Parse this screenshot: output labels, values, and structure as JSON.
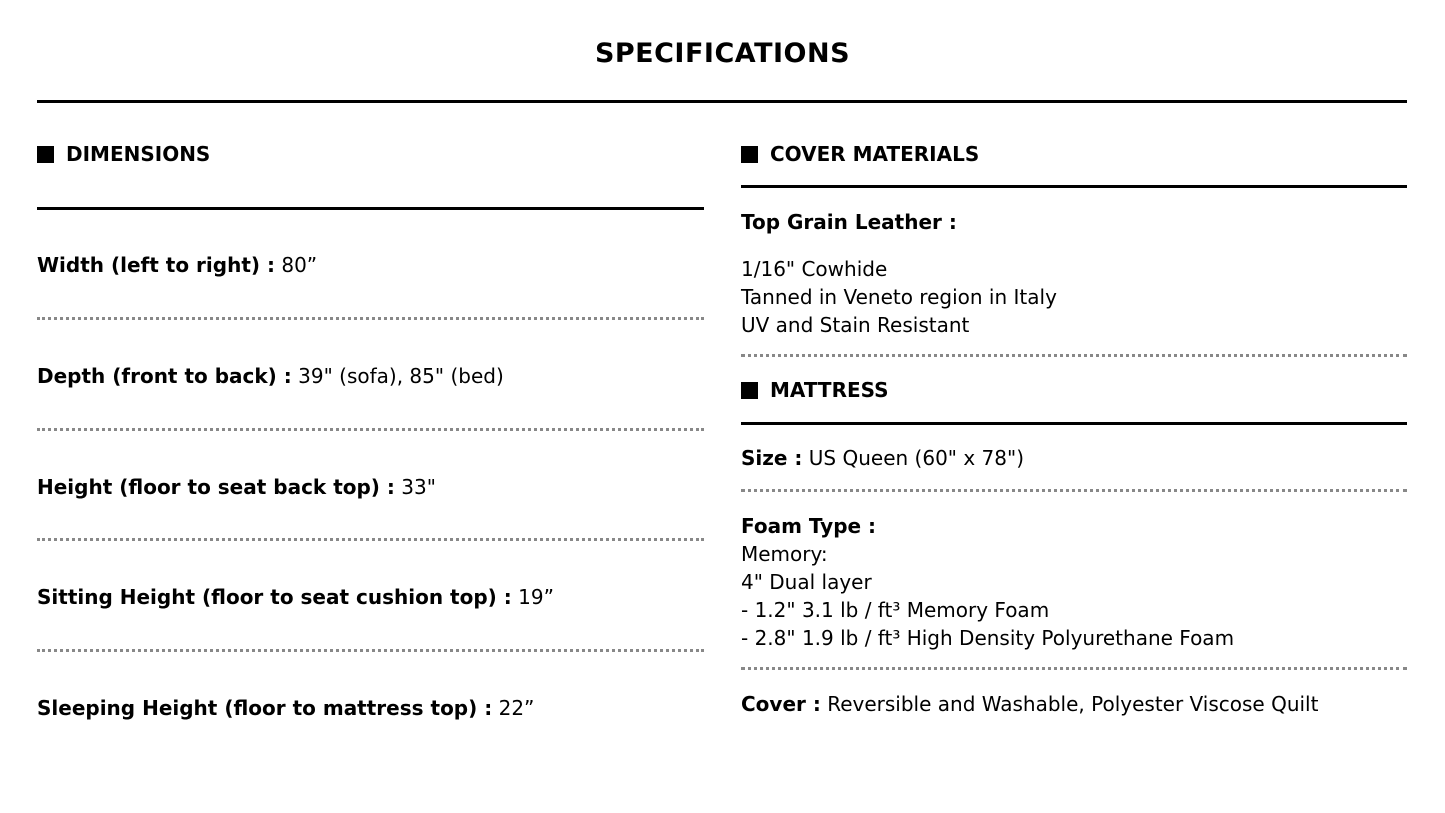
{
  "title": "SPECIFICATIONS",
  "dimensions": {
    "heading": "DIMENSIONS",
    "rows": [
      {
        "label": "Width (left to right) :",
        "value": " 80”"
      },
      {
        "label": "Depth (front to back) :",
        "value": " 39\" (sofa), 85\" (bed)"
      },
      {
        "label": "Height (floor to seat back top) :",
        "value": " 33\""
      },
      {
        "label": "Sitting Height (floor to seat cushion top) :",
        "value": " 19”"
      },
      {
        "label": "Sleeping Height (floor to mattress top) :",
        "value": " 22”"
      }
    ]
  },
  "cover_materials": {
    "heading": "COVER MATERIALS",
    "label": "Top Grain Leather :",
    "lines": [
      "1/16\" Cowhide",
      "Tanned in Veneto region in Italy",
      "UV and Stain Resistant"
    ]
  },
  "mattress": {
    "heading": "MATTRESS",
    "size_label": "Size :",
    "size_value": " US Queen (60\" x 78\")",
    "foam_label": "Foam Type :",
    "foam_lines": [
      "Memory:",
      "4\" Dual layer",
      "- 1.2\" 3.1 lb / ft³ Memory Foam",
      "- 2.8\" 1.9 lb / ft³ High Density Polyurethane Foam"
    ],
    "cover_label": "Cover :",
    "cover_value": " Reversible and Washable, Polyester Viscose Quilt"
  }
}
